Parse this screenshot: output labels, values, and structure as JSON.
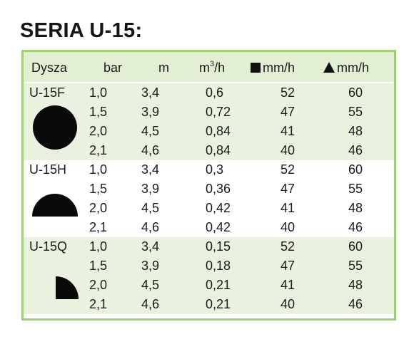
{
  "title": "SERIA U-15:",
  "headers": {
    "nozzle": "Dysza",
    "bar": "bar",
    "m": "m",
    "flow": "m",
    "flow_sup": "3",
    "flow_unit": "/h",
    "square_rate": "mm/h",
    "triangle_rate": "mm/h"
  },
  "colors": {
    "border": "#9fce74",
    "header_bg": "#e2efd2",
    "shaded_group_bg": "#e9f2de"
  },
  "groups": [
    {
      "name": "U-15F",
      "shape": "full-circle",
      "rows": [
        {
          "bar": "1,0",
          "m": "3,4",
          "flow": "0,6",
          "sq": "52",
          "tri": "60"
        },
        {
          "bar": "1,5",
          "m": "3,9",
          "flow": "0,72",
          "sq": "47",
          "tri": "55"
        },
        {
          "bar": "2,0",
          "m": "4,5",
          "flow": "0,84",
          "sq": "41",
          "tri": "48"
        },
        {
          "bar": "2,1",
          "m": "4,6",
          "flow": "0,84",
          "sq": "40",
          "tri": "46"
        }
      ]
    },
    {
      "name": "U-15H",
      "shape": "half-circle",
      "rows": [
        {
          "bar": "1,0",
          "m": "3,4",
          "flow": "0,3",
          "sq": "52",
          "tri": "60"
        },
        {
          "bar": "1,5",
          "m": "3,9",
          "flow": "0,36",
          "sq": "47",
          "tri": "55"
        },
        {
          "bar": "2,0",
          "m": "4,5",
          "flow": "0,42",
          "sq": "41",
          "tri": "48"
        },
        {
          "bar": "2,1",
          "m": "4,6",
          "flow": "0,42",
          "sq": "40",
          "tri": "46"
        }
      ]
    },
    {
      "name": "U-15Q",
      "shape": "quarter-circle",
      "rows": [
        {
          "bar": "1,0",
          "m": "3,4",
          "flow": "0,15",
          "sq": "52",
          "tri": "60"
        },
        {
          "bar": "1,5",
          "m": "3,9",
          "flow": "0,18",
          "sq": "47",
          "tri": "55"
        },
        {
          "bar": "2,0",
          "m": "4,5",
          "flow": "0,21",
          "sq": "41",
          "tri": "48"
        },
        {
          "bar": "2,1",
          "m": "4,6",
          "flow": "0,21",
          "sq": "40",
          "tri": "46"
        }
      ]
    }
  ]
}
